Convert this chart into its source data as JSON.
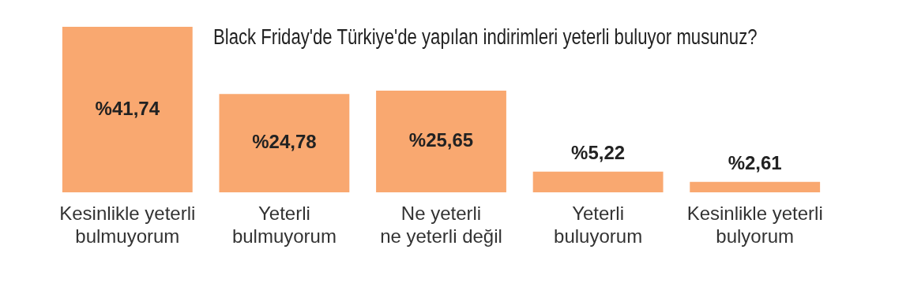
{
  "chart_data": {
    "type": "bar",
    "title": "Black Friday'de Türkiye'de yapılan indirimleri yeterli buluyor musunuz?",
    "categories": [
      "Kesinlikle yeterli\nbulmuyorum",
      "Yeterli\nbulmuyorum",
      "Ne yeterli\nne yeterli değil",
      "Yeterli\nbuluyorum",
      "Kesinlikle yeterli\nbulyorum"
    ],
    "values": [
      41.74,
      24.78,
      25.65,
      5.22,
      2.61
    ],
    "value_labels": [
      "%41,74",
      "%24,78",
      "%25,65",
      "%5,22",
      "%2,61"
    ],
    "color": "#f9a870",
    "grid": false,
    "legend": false
  }
}
